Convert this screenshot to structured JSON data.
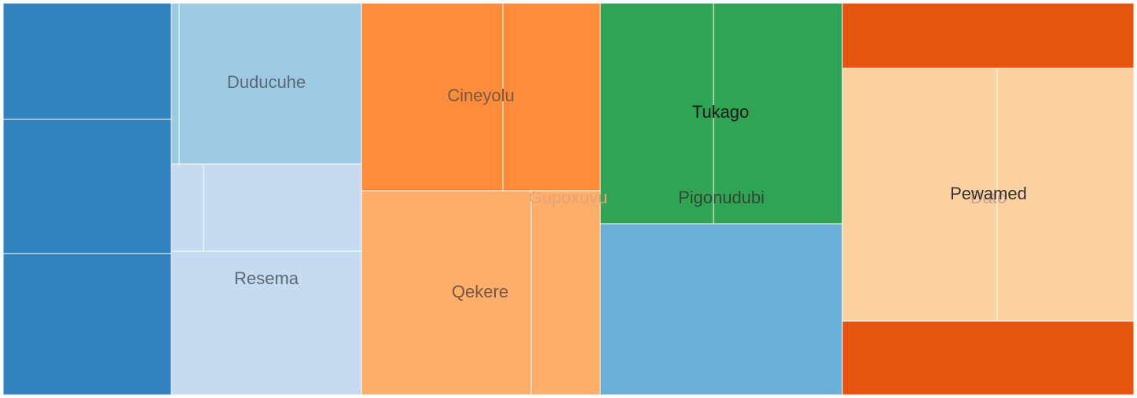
{
  "chart_data": {
    "type": "treemap",
    "title": "",
    "labels": [
      {
        "text": "Duducuhe",
        "color": "#5a6877"
      },
      {
        "text": "Resema",
        "color": "#5a6877"
      },
      {
        "text": "Cineyolu",
        "color": "#7a5840"
      },
      {
        "text": "Qekere",
        "color": "#7a5840"
      },
      {
        "text": "Gupoxuvu",
        "color": "#e8a374"
      },
      {
        "text": "Tukago",
        "color": "#1c1c1c"
      },
      {
        "text": "Pigonudubi",
        "color": "#2f4a34"
      },
      {
        "text": "Dato",
        "color": "#c9a386"
      },
      {
        "text": "Pewamed",
        "color": "#333333"
      }
    ],
    "cells": [
      {
        "name": "blue-a1",
        "color": "#3182bd"
      },
      {
        "name": "blue-a2",
        "color": "#3182bd"
      },
      {
        "name": "blue-a3",
        "color": "#3182bd"
      },
      {
        "name": "duducuhe-sliver",
        "color": "#9ecae1"
      },
      {
        "name": "duducuhe",
        "color": "#9ecae1"
      },
      {
        "name": "resema-small",
        "color": "#c6dbef"
      },
      {
        "name": "resema-mid",
        "color": "#c6dbef"
      },
      {
        "name": "resema",
        "color": "#c6dbef"
      },
      {
        "name": "cineyolu-left",
        "color": "#fd8d3c"
      },
      {
        "name": "cineyolu-right",
        "color": "#fd8d3c"
      },
      {
        "name": "qekere-left",
        "color": "#fdae6b"
      },
      {
        "name": "qekere-right",
        "color": "#fdae6b"
      },
      {
        "name": "tukago-left",
        "color": "#31a354"
      },
      {
        "name": "tukago-right",
        "color": "#31a354"
      },
      {
        "name": "pigonudubi-blue",
        "color": "#6baed6"
      },
      {
        "name": "orange-top",
        "color": "#e6550d"
      },
      {
        "name": "pewamed-left",
        "color": "#fdd0a2"
      },
      {
        "name": "pewamed-right",
        "color": "#fdd0a2"
      },
      {
        "name": "orange-bottom",
        "color": "#e6550d"
      }
    ]
  }
}
